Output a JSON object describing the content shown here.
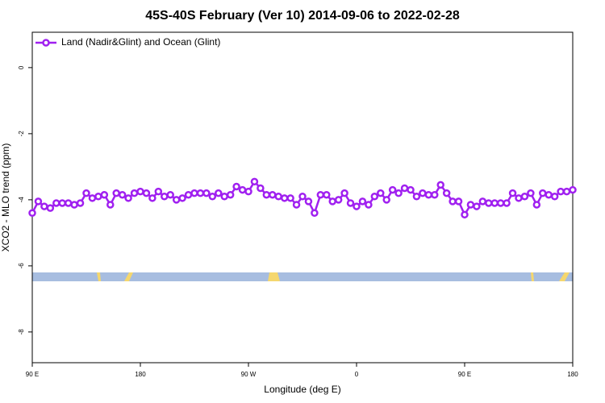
{
  "chart_data": {
    "type": "line",
    "title": "45S-40S February (Ver 10)   2014-09-06 to 2022-02-28",
    "x_label": "Longitude (deg E)",
    "y_label": "XCO2 - MLO trend (ppm)",
    "x": [
      90,
      95,
      100,
      105,
      110,
      115,
      120,
      125,
      130,
      135,
      140,
      145,
      150,
      155,
      160,
      165,
      170,
      175,
      180,
      185,
      190,
      195,
      200,
      205,
      210,
      215,
      220,
      225,
      230,
      235,
      240,
      245,
      250,
      255,
      260,
      265,
      270,
      275,
      280,
      285,
      290,
      295,
      300,
      305,
      310,
      315,
      320,
      325,
      330,
      335,
      340,
      345,
      350,
      355,
      360,
      365,
      370,
      375,
      380,
      385,
      390,
      395,
      400,
      405,
      410,
      415,
      420,
      425,
      430,
      435,
      440,
      445,
      450,
      455,
      460,
      465,
      470,
      475,
      480,
      485,
      490,
      495,
      500,
      505,
      510,
      515,
      520,
      525,
      530,
      535,
      540
    ],
    "series": [
      {
        "name": "Land (Nadir&Glint) and Ocean (Glint)",
        "color": "#a020f0",
        "values": [
          -4.4,
          -4.05,
          -4.2,
          -4.25,
          -4.1,
          -4.1,
          -4.1,
          -4.15,
          -4.1,
          -3.8,
          -3.95,
          -3.9,
          -3.85,
          -4.15,
          -3.8,
          -3.85,
          -3.95,
          -3.8,
          -3.75,
          -3.8,
          -3.95,
          -3.75,
          -3.9,
          -3.85,
          -4.0,
          -3.95,
          -3.85,
          -3.8,
          -3.8,
          -3.8,
          -3.9,
          -3.8,
          -3.9,
          -3.85,
          -3.6,
          -3.7,
          -3.75,
          -3.45,
          -3.65,
          -3.85,
          -3.85,
          -3.9,
          -3.95,
          -3.95,
          -4.15,
          -3.9,
          -4.05,
          -4.4,
          -3.85,
          -3.85,
          -4.05,
          -4.0,
          -3.8,
          -4.1,
          -4.2,
          -4.05,
          -4.15,
          -3.9,
          -3.8,
          -4.0,
          -3.7,
          -3.8,
          -3.65,
          -3.7,
          -3.9,
          -3.8,
          -3.85,
          -3.85,
          -3.55,
          -3.8,
          -4.05,
          -4.05,
          -4.45,
          -4.15,
          -4.2,
          -4.05,
          -4.1,
          -4.1,
          -4.1,
          -4.1,
          -3.8,
          -3.95,
          -3.9,
          -3.8,
          -4.15,
          -3.8,
          -3.85,
          -3.9,
          -3.75,
          -3.75,
          -3.7
        ]
      }
    ],
    "xlim": [
      90,
      540
    ],
    "xticks": [
      {
        "value": 90,
        "label": "90 E"
      },
      {
        "value": 180,
        "label": "180"
      },
      {
        "value": 270,
        "label": "90 W"
      },
      {
        "value": 360,
        "label": "0"
      },
      {
        "value": 450,
        "label": "90 E"
      },
      {
        "value": 540,
        "label": "180"
      }
    ],
    "ylim": [
      -8.93,
      1.07
    ],
    "yticks": [
      0,
      -2,
      -4,
      -6,
      -8
    ],
    "legend": "top-left"
  }
}
